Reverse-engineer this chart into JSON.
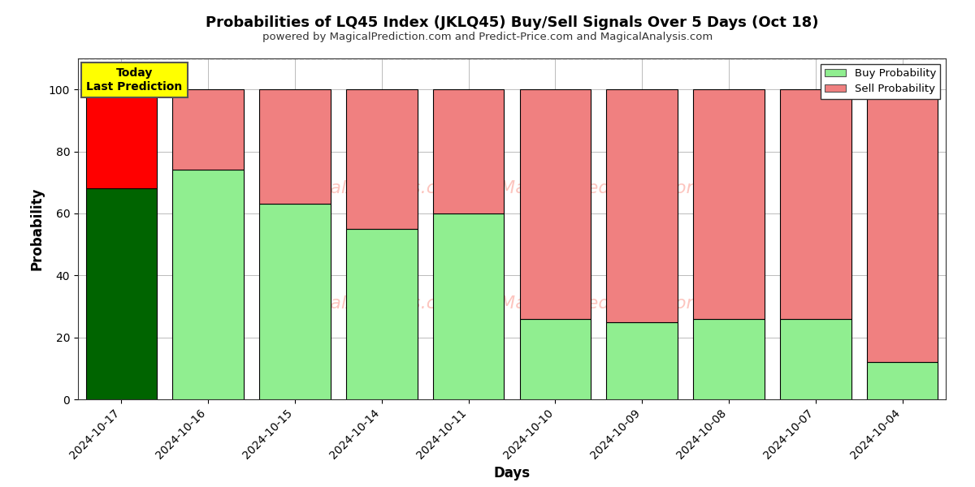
{
  "title": "Probabilities of LQ45 Index (JKLQ45) Buy/Sell Signals Over 5 Days (Oct 18)",
  "subtitle": "powered by MagicalPrediction.com and Predict-Price.com and MagicalAnalysis.com",
  "xlabel": "Days",
  "ylabel": "Probability",
  "categories": [
    "2024-10-17",
    "2024-10-16",
    "2024-10-15",
    "2024-10-14",
    "2024-10-11",
    "2024-10-10",
    "2024-10-09",
    "2024-10-08",
    "2024-10-07",
    "2024-10-04"
  ],
  "buy_values": [
    68,
    74,
    63,
    55,
    60,
    26,
    25,
    26,
    26,
    12
  ],
  "sell_values": [
    32,
    26,
    37,
    45,
    40,
    74,
    75,
    74,
    74,
    88
  ],
  "buy_colors": [
    "#006400",
    "#90EE90",
    "#90EE90",
    "#90EE90",
    "#90EE90",
    "#90EE90",
    "#90EE90",
    "#90EE90",
    "#90EE90",
    "#90EE90"
  ],
  "sell_colors": [
    "#FF0000",
    "#F08080",
    "#F08080",
    "#F08080",
    "#F08080",
    "#F08080",
    "#F08080",
    "#F08080",
    "#F08080",
    "#F08080"
  ],
  "ylim": [
    0,
    110
  ],
  "yticks": [
    0,
    20,
    40,
    60,
    80,
    100
  ],
  "dashed_line_y": 110,
  "today_label": "Today\nLast Prediction",
  "today_label_bg": "#FFFF00",
  "legend_buy_color": "#90EE90",
  "legend_sell_color": "#F08080",
  "legend_buy_label": "Buy Probability",
  "legend_sell_label": "Sell Probability",
  "watermark_line1": "calAnalysis.com    MagicalPrediction.com",
  "watermark_line2": "calAnalysis.com    MagicalPrediction.com",
  "bg_color": "#ffffff",
  "grid_color": "#bbbbbb",
  "bar_edgecolor": "#000000",
  "bar_linewidth": 0.8,
  "bar_width": 0.82,
  "figsize": [
    12,
    6
  ],
  "dpi": 100
}
